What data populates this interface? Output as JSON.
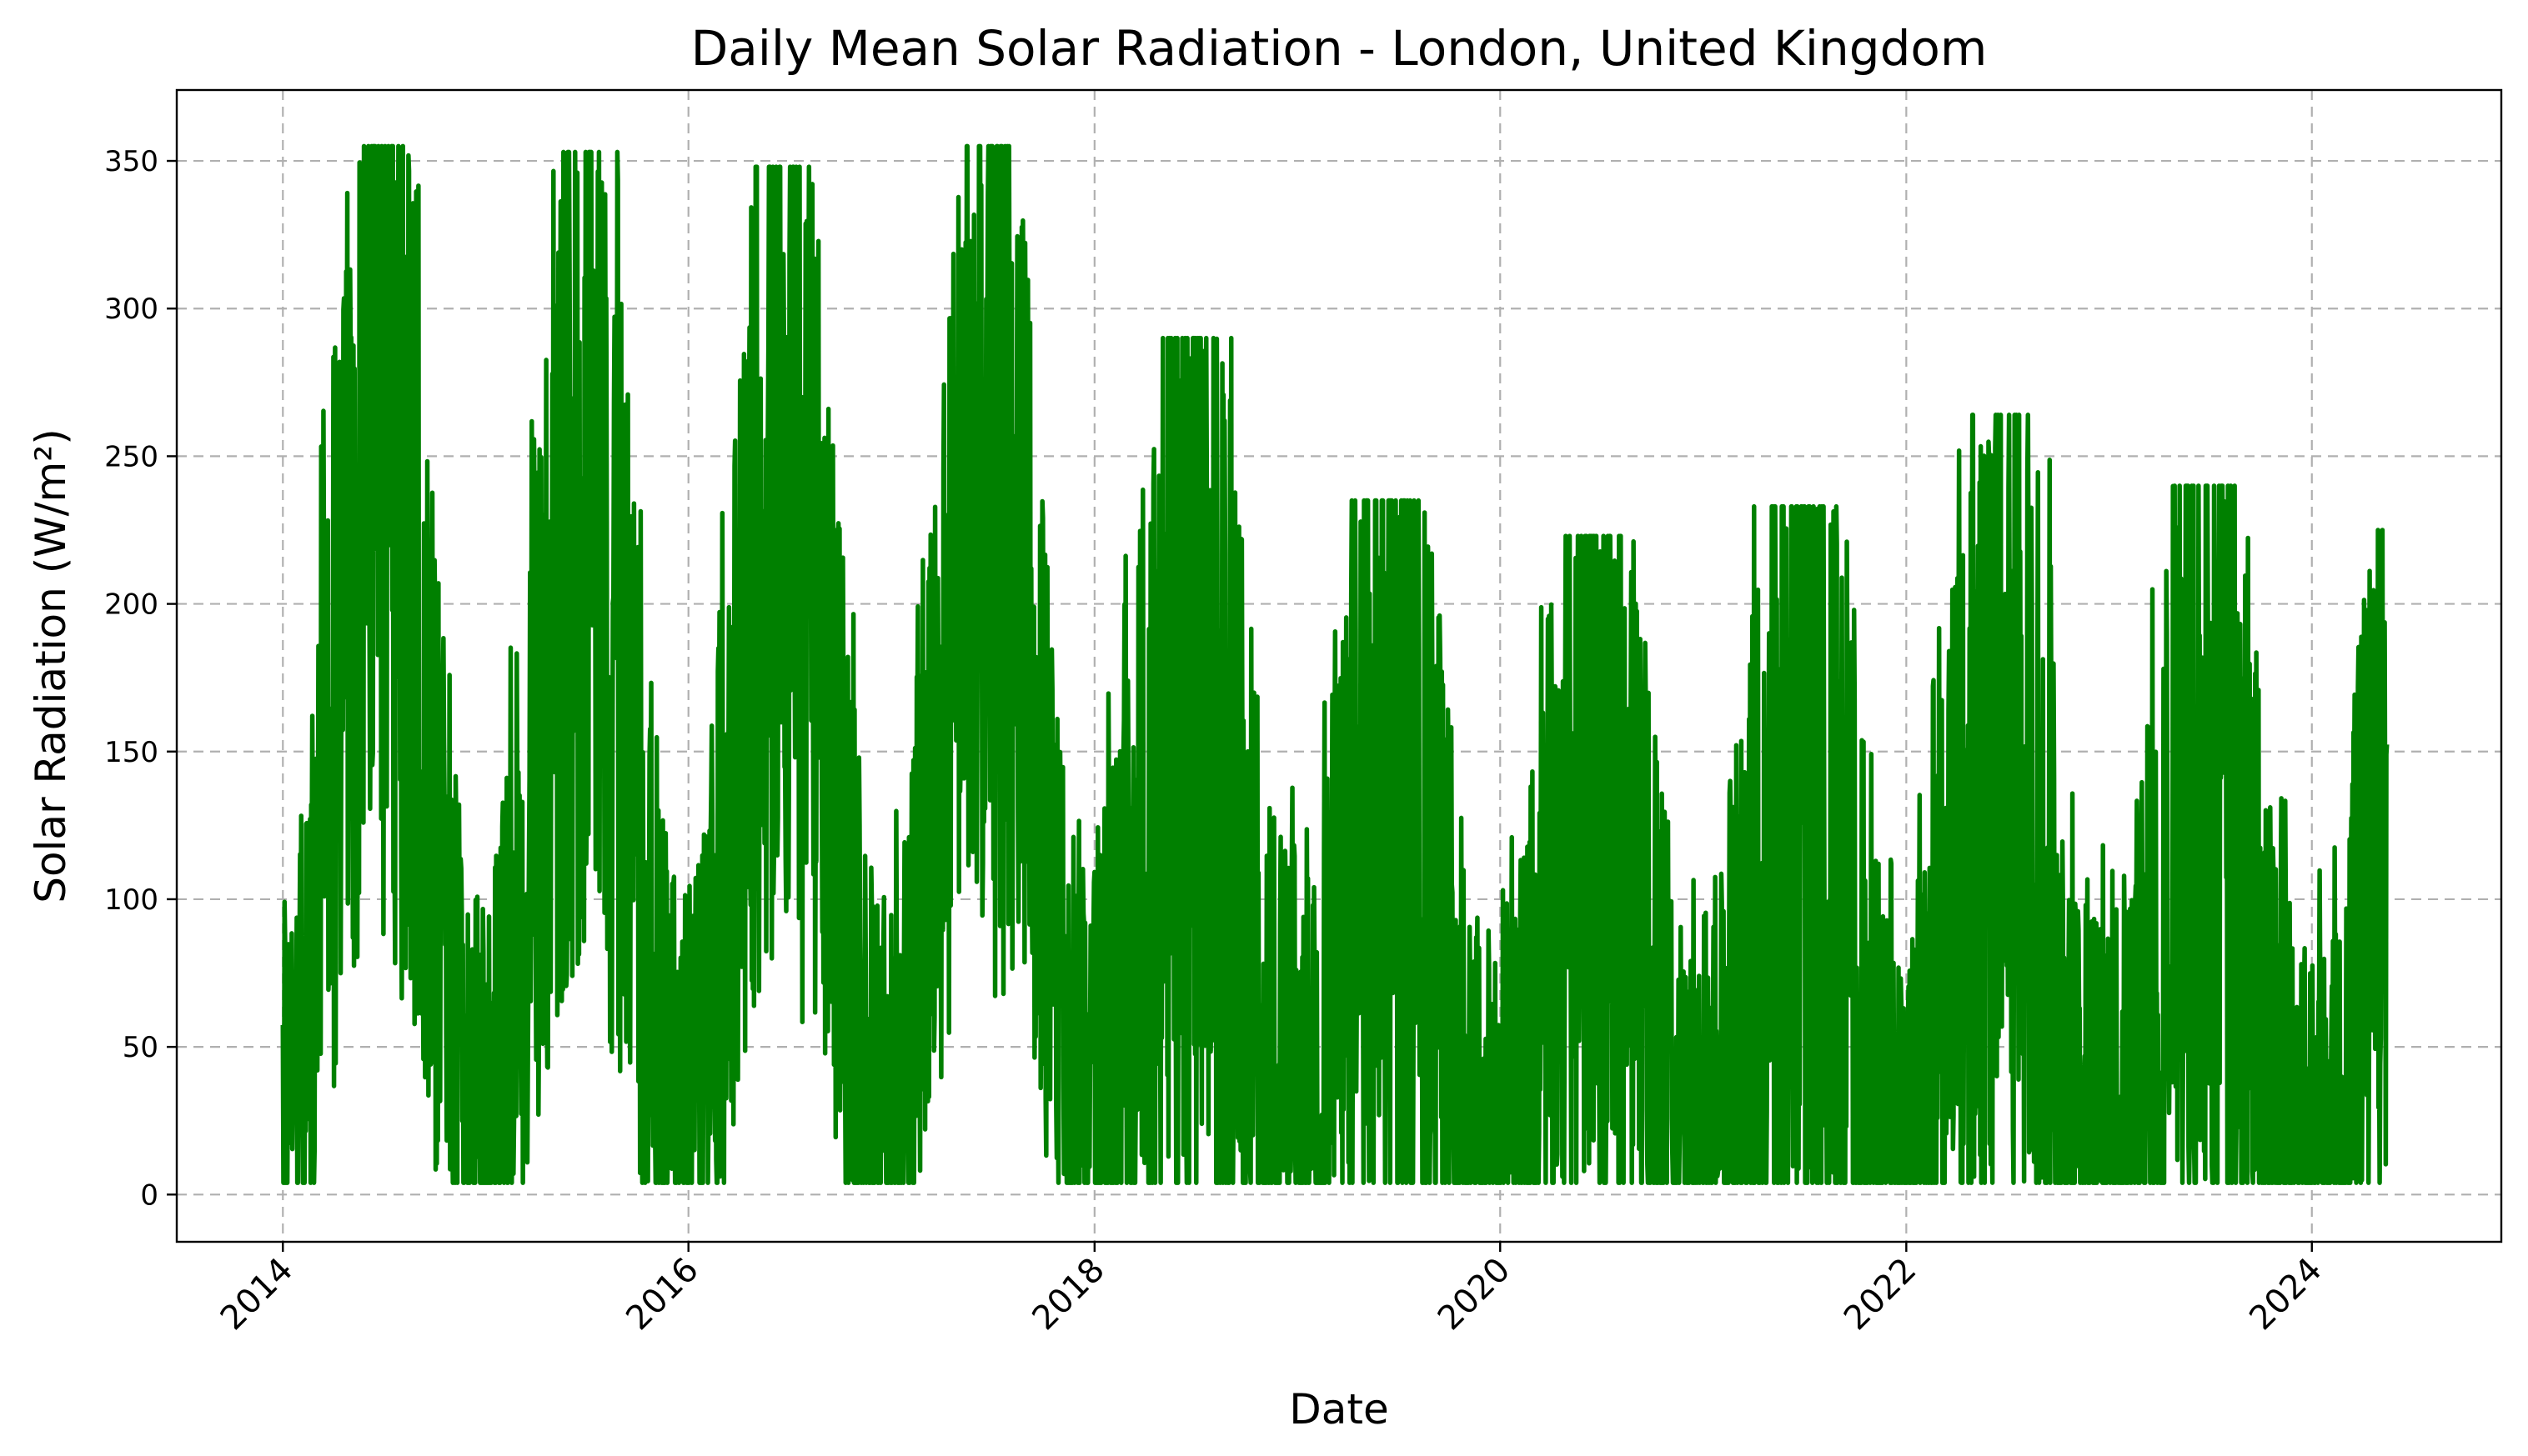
{
  "chart_data": {
    "type": "line",
    "title": "Daily Mean Solar Radiation - London, United Kingdom",
    "xlabel": "Date",
    "ylabel": "Solar Radiation (W/m²)",
    "x_ticks": [
      "2014",
      "2016",
      "2018",
      "2020",
      "2022",
      "2024"
    ],
    "y_ticks": [
      0,
      50,
      100,
      150,
      200,
      250,
      300,
      350
    ],
    "xlim": [
      "2013-06-24",
      "2024-12-07"
    ],
    "ylim": [
      -16,
      374
    ],
    "grid": true,
    "line_color": "#008000",
    "x_start": "2014-01-01",
    "x_end": "2024-05-15",
    "series": [
      {
        "name": "",
        "seasonal_amplitude_by_year": [
          {
            "year": "2014",
            "peak": 355,
            "summer_mean": 250,
            "winter_mean": 30
          },
          {
            "year": "2015",
            "peak": 353,
            "summer_mean": 240,
            "winter_mean": 28
          },
          {
            "year": "2016",
            "peak": 348,
            "summer_mean": 245,
            "winter_mean": 28
          },
          {
            "year": "2017",
            "peak": 355,
            "summer_mean": 255,
            "winter_mean": 30
          },
          {
            "year": "2018",
            "peak": 290,
            "summer_mean": 150,
            "winter_mean": 25
          },
          {
            "year": "2019",
            "peak": 235,
            "summer_mean": 130,
            "winter_mean": 18
          },
          {
            "year": "2020",
            "peak": 223,
            "summer_mean": 130,
            "winter_mean": 18
          },
          {
            "year": "2021",
            "peak": 233,
            "summer_mean": 120,
            "winter_mean": 16
          },
          {
            "year": "2022",
            "peak": 264,
            "summer_mean": 150,
            "winter_mean": 14
          },
          {
            "year": "2023",
            "peak": 240,
            "summer_mean": 135,
            "winter_mean": 14
          },
          {
            "year": "2024",
            "peak": 225,
            "summer_mean": 130,
            "winter_mean": 15
          }
        ]
      }
    ]
  }
}
